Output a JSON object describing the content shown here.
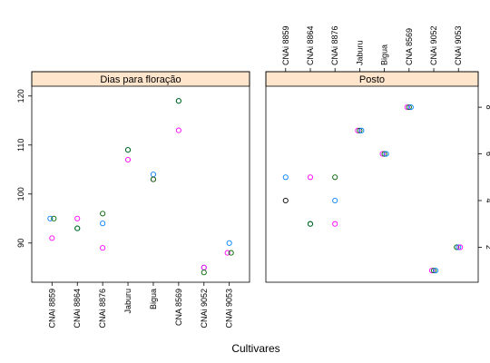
{
  "chart_data": {
    "type": "scatter",
    "xlabel": "Cultivares",
    "categories": [
      "CNAi 8859",
      "CNAi 8864",
      "CNAi 8876",
      "Jaburu",
      "Bigua",
      "CNA 8569",
      "CNAi 9052",
      "CNAi 9053"
    ],
    "series_colors": [
      "#0080ff",
      "#ff00ff",
      "#006400",
      "#ff0000"
    ],
    "strip_color": "#ffe5cc",
    "panels": [
      {
        "title": "Dias para floração",
        "ylim": [
          82,
          122
        ],
        "yticks": [
          90,
          100,
          110,
          120
        ],
        "points": [
          {
            "x": "CNAi 8859",
            "y": 95,
            "color": "#0080ff",
            "dx": -1
          },
          {
            "x": "CNAi 8859",
            "y": 95,
            "color": "#006400",
            "dx": 1
          },
          {
            "x": "CNAi 8859",
            "y": 91,
            "color": "#ff00ff",
            "dx": 0
          },
          {
            "x": "CNAi 8864",
            "y": 95,
            "color": "#ff00ff",
            "dx": 0
          },
          {
            "x": "CNAi 8864",
            "y": 93,
            "color": "#0080ff",
            "dx": 0
          },
          {
            "x": "CNAi 8864",
            "y": 93,
            "color": "#006400",
            "dx": 0
          },
          {
            "x": "CNAi 8876",
            "y": 96,
            "color": "#006400",
            "dx": 0
          },
          {
            "x": "CNAi 8876",
            "y": 94,
            "color": "#0080ff",
            "dx": 0
          },
          {
            "x": "CNAi 8876",
            "y": 89,
            "color": "#ff00ff",
            "dx": 0
          },
          {
            "x": "Jaburu",
            "y": 109,
            "color": "#0080ff",
            "dx": 0
          },
          {
            "x": "Jaburu",
            "y": 109,
            "color": "#006400",
            "dx": 0
          },
          {
            "x": "Jaburu",
            "y": 107,
            "color": "#ff00ff",
            "dx": 0
          },
          {
            "x": "Bigua",
            "y": 104,
            "color": "#0080ff",
            "dx": 0
          },
          {
            "x": "Bigua",
            "y": 103,
            "color": "#ff00ff",
            "dx": 0
          },
          {
            "x": "Bigua",
            "y": 103,
            "color": "#006400",
            "dx": 0
          },
          {
            "x": "CNA 8569",
            "y": 119,
            "color": "#0080ff",
            "dx": 0
          },
          {
            "x": "CNA 8569",
            "y": 119,
            "color": "#006400",
            "dx": 0
          },
          {
            "x": "CNA 8569",
            "y": 113,
            "color": "#ff00ff",
            "dx": 0
          },
          {
            "x": "CNAi 9052",
            "y": 85,
            "color": "#0080ff",
            "dx": 0
          },
          {
            "x": "CNAi 9052",
            "y": 85,
            "color": "#ff00ff",
            "dx": 0
          },
          {
            "x": "CNAi 9052",
            "y": 84,
            "color": "#006400",
            "dx": 0
          },
          {
            "x": "CNAi 9053",
            "y": 90,
            "color": "#0080ff",
            "dx": 0
          },
          {
            "x": "CNAi 9053",
            "y": 88,
            "color": "#ff00ff",
            "dx": -1
          },
          {
            "x": "CNAi 9053",
            "y": 88,
            "color": "#006400",
            "dx": 1
          }
        ]
      },
      {
        "title": "Posto",
        "ylim": [
          0.5,
          8.9
        ],
        "yticks": [
          2,
          4,
          6,
          8
        ],
        "points": [
          {
            "x": "CNAi 8859",
            "y": 5,
            "color": "#0080ff",
            "dx": 0
          },
          {
            "x": "CNAi 8859",
            "y": 4,
            "color": "#000000",
            "dx": 0
          },
          {
            "x": "CNAi 8864",
            "y": 5,
            "color": "#ff00ff",
            "dx": 0
          },
          {
            "x": "CNAi 8864",
            "y": 3,
            "color": "#0080ff",
            "dx": 0
          },
          {
            "x": "CNAi 8864",
            "y": 3,
            "color": "#006400",
            "dx": 0
          },
          {
            "x": "CNAi 8876",
            "y": 5,
            "color": "#006400",
            "dx": 0
          },
          {
            "x": "CNAi 8876",
            "y": 4,
            "color": "#0080ff",
            "dx": 0
          },
          {
            "x": "CNAi 8876",
            "y": 3,
            "color": "#ff00ff",
            "dx": 0
          },
          {
            "x": "Jaburu",
            "y": 7,
            "color": "#ff00ff",
            "dx": -1
          },
          {
            "x": "Jaburu",
            "y": 7,
            "color": "#006400",
            "dx": 0
          },
          {
            "x": "Jaburu",
            "y": 7,
            "color": "#0080ff",
            "dx": 1
          },
          {
            "x": "Bigua",
            "y": 6,
            "color": "#ff00ff",
            "dx": -1
          },
          {
            "x": "Bigua",
            "y": 6,
            "color": "#006400",
            "dx": 0
          },
          {
            "x": "Bigua",
            "y": 6,
            "color": "#0080ff",
            "dx": 1
          },
          {
            "x": "CNA 8569",
            "y": 8,
            "color": "#ff00ff",
            "dx": -1
          },
          {
            "x": "CNA 8569",
            "y": 8,
            "color": "#006400",
            "dx": 0
          },
          {
            "x": "CNA 8569",
            "y": 8,
            "color": "#0080ff",
            "dx": 1
          },
          {
            "x": "CNAi 9052",
            "y": 1,
            "color": "#ff00ff",
            "dx": -1
          },
          {
            "x": "CNAi 9052",
            "y": 1,
            "color": "#006400",
            "dx": 0
          },
          {
            "x": "CNAi 9052",
            "y": 1,
            "color": "#0080ff",
            "dx": 1
          },
          {
            "x": "CNAi 9053",
            "y": 2,
            "color": "#006400",
            "dx": -1
          },
          {
            "x": "CNAi 9053",
            "y": 2,
            "color": "#0080ff",
            "dx": 0
          },
          {
            "x": "CNAi 9053",
            "y": 2,
            "color": "#ff00ff",
            "dx": 1
          }
        ]
      }
    ]
  }
}
